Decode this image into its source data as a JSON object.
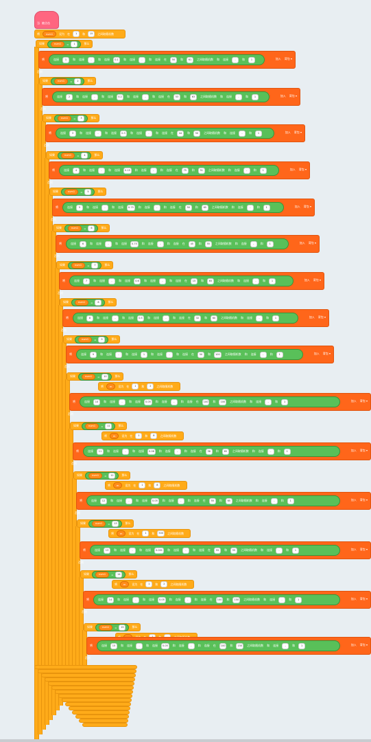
{
  "hat": {
    "text1": "当",
    "text2": "被点击"
  },
  "set_random": {
    "set": "将",
    "var": "num1",
    "to": "设为",
    "between": "在",
    "and": "和",
    "tail": "之间取随机数",
    "min": "1",
    "max": "15"
  },
  "labels": {
    "if": "如果",
    "then": "那么",
    "else": "否则",
    "eq": "=",
    "set": "将",
    "join": "连接",
    "add": "加入",
    "list": "背包",
    "pick": "在",
    "and": "和",
    "rand": "之间取随机数",
    "to": "设为"
  },
  "conditions": [
    "1",
    "2",
    "3",
    "4",
    "5",
    "6",
    "7",
    "8",
    "9",
    "10",
    "11",
    "12",
    "13",
    "14",
    "15"
  ],
  "rows": [
    {
      "id": "1",
      "a": "1",
      "b": "0.1",
      "c": "50",
      "d": "61"
    },
    {
      "id": "2",
      "a": "2",
      "b": "0.2",
      "c": "53",
      "d": "63"
    },
    {
      "id": "3",
      "a": "3",
      "b": "0.3",
      "c": "44",
      "d": "50"
    },
    {
      "id": "4",
      "a": "4",
      "b": "0.15",
      "c": "75",
      "d": "51"
    },
    {
      "id": "5",
      "a": "5",
      "b": "0.75",
      "c": "50",
      "d": "65"
    },
    {
      "id": "6",
      "a": "6",
      "b": "0.75",
      "c": "45",
      "d": "55"
    },
    {
      "id": "7",
      "a": "7",
      "b": "0.6",
      "c": "15",
      "d": "65"
    },
    {
      "id": "8",
      "a": "8",
      "b": "0.5",
      "c": "32",
      "d": "60"
    },
    {
      "id": "9",
      "a": "9",
      "b": "1",
      "c": "50",
      "d": "100"
    },
    {
      "id": "10",
      "a": "10",
      "b": "0.05",
      "c": "100",
      "d": "100"
    },
    {
      "id": "11",
      "a": "11",
      "b": "0.06",
      "c": "58",
      "d": "65"
    },
    {
      "id": "12",
      "a": "12",
      "b": "0.05",
      "c": "55",
      "d": "65"
    },
    {
      "id": "13",
      "a": "13",
      "b": "0.001",
      "c": "55",
      "d": "55"
    },
    {
      "id": "14",
      "a": "14",
      "b": "0.05",
      "c": "100",
      "d": "150"
    },
    {
      "id": "15",
      "a": "15",
      "b": "0.05",
      "c": "100",
      "d": "150"
    }
  ],
  "inner_vars": {
    "var": "m",
    "r10": "2",
    "r11": "8",
    "r12": "8",
    "r13": "500",
    "r14": "2"
  }
}
